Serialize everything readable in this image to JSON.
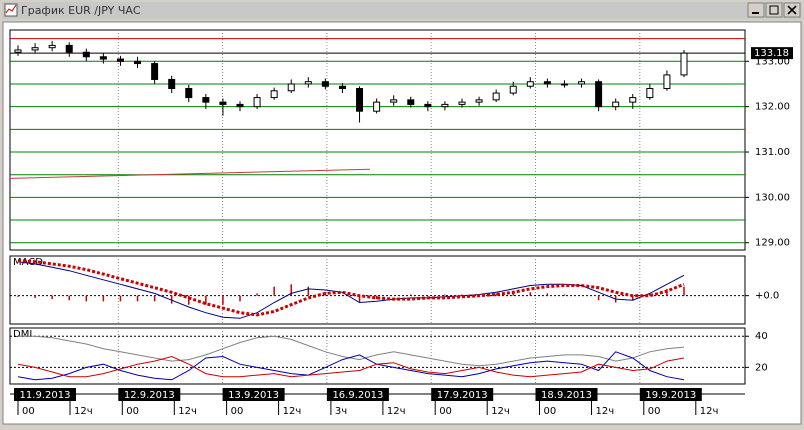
{
  "window": {
    "title": "График EUR /JPY  ЧАС"
  },
  "chart_data": [
    {
      "type": "candlestick",
      "open": [
        133.2,
        133.25,
        133.3,
        133.35,
        133.2,
        133.1,
        133.05,
        133.0,
        132.95,
        132.6,
        132.4,
        132.2,
        132.1,
        132.05,
        132.0,
        132.2,
        132.35,
        132.5,
        132.55,
        132.45,
        132.4,
        131.9,
        132.1,
        132.15,
        132.05,
        132.0,
        132.05,
        132.1,
        132.15,
        132.3,
        132.45,
        132.55,
        132.5,
        132.5,
        132.55,
        132.0,
        132.1,
        132.2,
        132.4,
        132.7
      ],
      "high": [
        133.35,
        133.4,
        133.45,
        133.42,
        133.28,
        133.18,
        133.12,
        133.1,
        133.0,
        132.68,
        132.48,
        132.28,
        132.18,
        132.12,
        132.28,
        132.42,
        132.6,
        132.65,
        132.62,
        132.52,
        132.45,
        132.18,
        132.25,
        132.22,
        132.12,
        132.12,
        132.18,
        132.22,
        132.38,
        132.55,
        132.65,
        132.62,
        132.58,
        132.62,
        132.6,
        132.18,
        132.28,
        132.5,
        132.8,
        133.25
      ],
      "low": [
        133.12,
        133.18,
        133.22,
        133.1,
        133.0,
        132.95,
        132.9,
        132.85,
        132.5,
        132.3,
        132.1,
        131.95,
        131.8,
        131.9,
        131.95,
        132.15,
        132.3,
        132.42,
        132.38,
        132.3,
        131.65,
        131.85,
        132.02,
        131.98,
        131.9,
        131.92,
        131.98,
        132.02,
        132.1,
        132.25,
        132.4,
        132.42,
        132.42,
        132.42,
        131.9,
        131.92,
        131.95,
        132.15,
        132.35,
        132.65
      ],
      "close": [
        133.25,
        133.3,
        133.35,
        133.2,
        133.1,
        133.05,
        133.0,
        132.95,
        132.6,
        132.4,
        132.2,
        132.1,
        132.05,
        132.0,
        132.2,
        132.35,
        132.5,
        132.55,
        132.45,
        132.4,
        131.9,
        132.1,
        132.15,
        132.05,
        132.0,
        132.05,
        132.1,
        132.15,
        132.3,
        132.45,
        132.55,
        132.5,
        132.5,
        132.55,
        132.0,
        132.1,
        132.2,
        132.4,
        132.7,
        133.18
      ],
      "up_color": "#ffffff",
      "down_color": "#000000",
      "ylim": [
        128.84,
        133.69
      ],
      "yticks": [
        {
          "value": 129,
          "label": "129.00"
        },
        {
          "value": 130,
          "label": "130.00"
        },
        {
          "value": 131,
          "label": "131.00"
        },
        {
          "value": 132,
          "label": "132.00"
        },
        {
          "value": 133,
          "label": "133.00"
        }
      ],
      "minor_grid": [
        129.5,
        130.5,
        131.5,
        132.5
      ],
      "grid_color": "#008000",
      "levels": [
        {
          "value": 133.5,
          "color": "#cc0000"
        }
      ],
      "trendline": {
        "values": [
          130.42,
          130.62
        ],
        "color": "#c04040"
      }
    },
    {
      "type": "macd",
      "title": "MACD",
      "ylim": [
        -0.25,
        0.35
      ],
      "yticks": [
        {
          "value": 0,
          "label": "+0.0"
        }
      ],
      "series": [
        {
          "color": "#000080",
          "values": [
            0.3,
            0.28,
            0.25,
            0.22,
            0.18,
            0.14,
            0.1,
            0.06,
            0.02,
            -0.04,
            -0.1,
            -0.15,
            -0.19,
            -0.2,
            -0.15,
            -0.06,
            0.02,
            0.06,
            0.05,
            0.03,
            -0.06,
            -0.05,
            -0.03,
            -0.02,
            -0.02,
            -0.01,
            0.0,
            0.01,
            0.03,
            0.06,
            0.09,
            0.1,
            0.1,
            0.09,
            0.03,
            -0.03,
            -0.04,
            0.02,
            0.1,
            0.18
          ]
        },
        {
          "color": "#cc0000",
          "dotted": true,
          "values": [
            0.31,
            0.3,
            0.28,
            0.26,
            0.23,
            0.19,
            0.15,
            0.11,
            0.07,
            0.03,
            -0.02,
            -0.07,
            -0.11,
            -0.15,
            -0.17,
            -0.14,
            -0.08,
            -0.02,
            0.02,
            0.03,
            0.0,
            -0.02,
            -0.03,
            -0.03,
            -0.02,
            -0.02,
            -0.01,
            0.0,
            0.01,
            0.03,
            0.06,
            0.08,
            0.09,
            0.09,
            0.07,
            0.03,
            0.0,
            0.0,
            0.04,
            0.1
          ]
        }
      ],
      "histogram": {
        "color": "#cc0000",
        "values": [
          -0.01,
          -0.02,
          -0.03,
          -0.04,
          -0.05,
          -0.05,
          -0.05,
          -0.05,
          -0.05,
          -0.07,
          -0.08,
          -0.08,
          -0.08,
          -0.05,
          0.02,
          0.08,
          0.1,
          0.08,
          0.03,
          0.0,
          -0.06,
          -0.03,
          0.0,
          0.01,
          0.0,
          0.01,
          0.01,
          0.01,
          0.02,
          0.03,
          0.03,
          0.02,
          0.01,
          0.0,
          -0.04,
          -0.06,
          -0.04,
          0.02,
          0.06,
          0.08
        ]
      }
    },
    {
      "type": "line",
      "title": "DMI",
      "ylim": [
        9.3,
        45.3
      ],
      "yticks": [
        20,
        40
      ],
      "series": [
        {
          "color": "#808080",
          "values": [
            40,
            40,
            39,
            37,
            35,
            32,
            30,
            28,
            26,
            24,
            25,
            28,
            32,
            36,
            39,
            40,
            38,
            34,
            30,
            27,
            25,
            28,
            30,
            28,
            26,
            24,
            22,
            21,
            22,
            24,
            26,
            27,
            28,
            28,
            27,
            24,
            26,
            30,
            32,
            33
          ]
        },
        {
          "color": "#0000aa",
          "values": [
            14,
            12,
            13,
            16,
            20,
            22,
            18,
            15,
            13,
            12,
            18,
            26,
            27,
            22,
            20,
            18,
            16,
            15,
            20,
            25,
            28,
            22,
            20,
            18,
            16,
            15,
            14,
            16,
            19,
            21,
            23,
            24,
            23,
            22,
            18,
            30,
            26,
            18,
            14,
            12
          ]
        },
        {
          "color": "#cc0000",
          "values": [
            22,
            20,
            17,
            14,
            14,
            16,
            19,
            22,
            24,
            27,
            22,
            16,
            14,
            14,
            15,
            16,
            14,
            15,
            16,
            17,
            18,
            22,
            23,
            19,
            17,
            16,
            18,
            20,
            17,
            15,
            14,
            15,
            16,
            17,
            22,
            20,
            18,
            19,
            24,
            26
          ]
        }
      ]
    }
  ],
  "x_axis": [
    {
      "date": "11.9.2013",
      "hours": [
        "00",
        "12ч"
      ]
    },
    {
      "date": "12.9.2013",
      "hours": [
        "00",
        "12ч"
      ]
    },
    {
      "date": "13.9.2013",
      "hours": [
        "00",
        "12ч"
      ]
    },
    {
      "date": "16.9.2013",
      "hours": [
        "3ч",
        "12ч"
      ]
    },
    {
      "date": "17.9.2013",
      "hours": [
        "00",
        "12ч"
      ]
    },
    {
      "date": "18.9.2013",
      "hours": [
        "00",
        "12ч"
      ]
    },
    {
      "date": "19.9.2013",
      "hours": [
        "00",
        "12ч"
      ]
    }
  ]
}
